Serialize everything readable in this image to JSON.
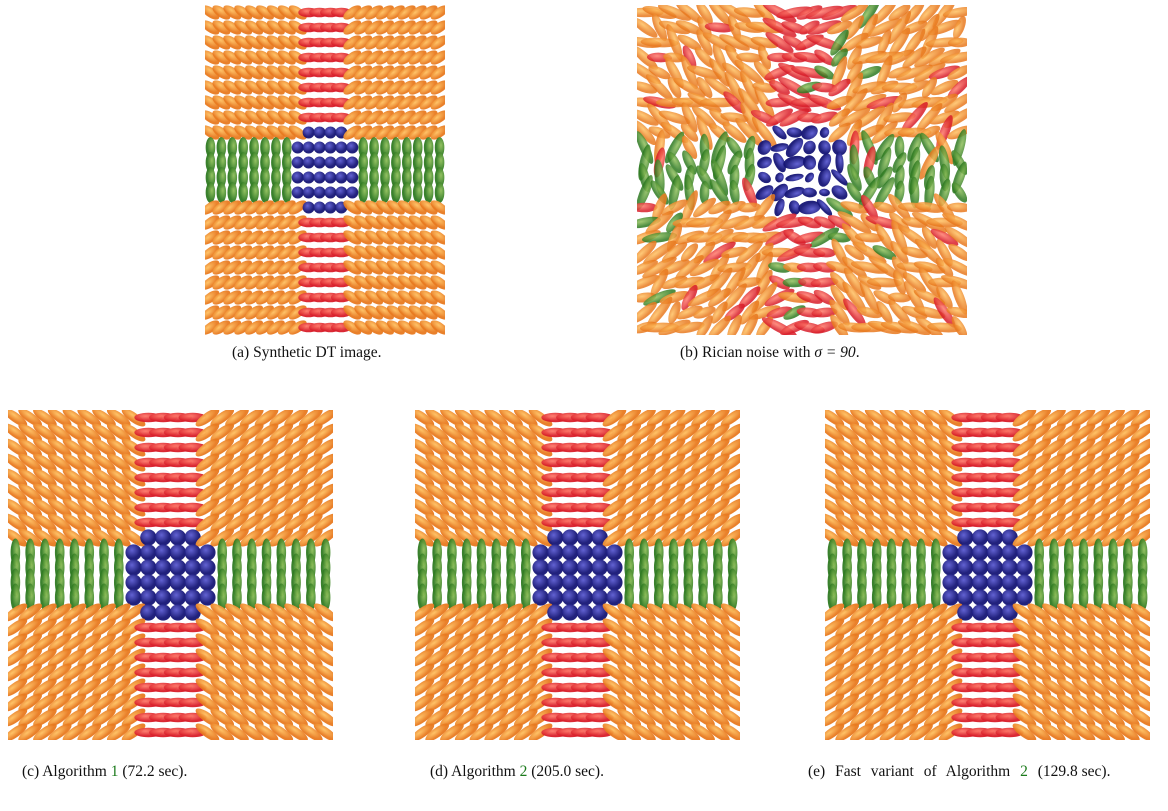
{
  "panels": [
    {
      "label": "(a)",
      "text": "Synthetic DT image."
    },
    {
      "label": "(b)",
      "text": "Rician noise with",
      "math": "σ = 90",
      "end": "."
    },
    {
      "label": "(c)",
      "text": "Algorithm",
      "ref": "1",
      "end": "(72.2 sec)."
    },
    {
      "label": "(d)",
      "text": "Algorithm",
      "ref": "2",
      "end": "(205.0 sec)."
    },
    {
      "label": "(e)",
      "text": "Fast variant of Algorithm",
      "ref": "2",
      "end": "(129.8 sec)."
    }
  ]
}
